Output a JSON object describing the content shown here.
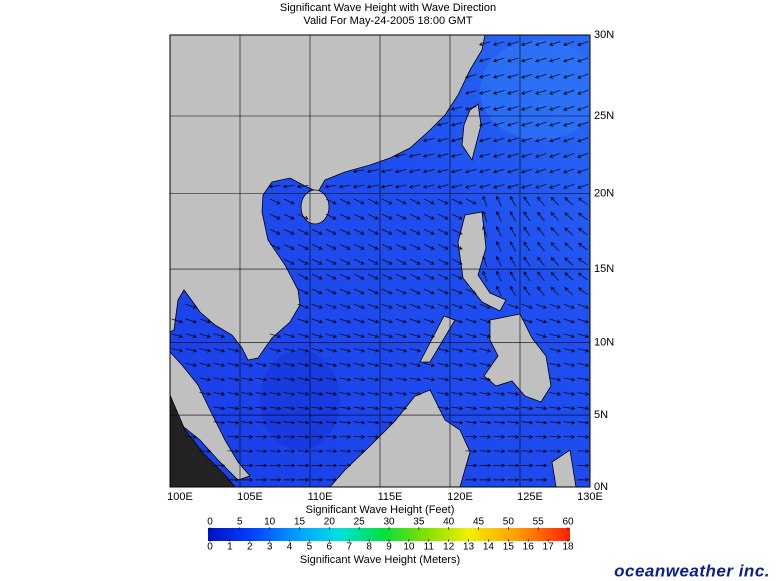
{
  "title": "Significant Wave Height with Wave Direction",
  "subtitle": "Valid For May-24-2005 18:00 GMT",
  "map": {
    "lon_labels": [
      "100E",
      "105E",
      "110E",
      "115E",
      "120E",
      "125E",
      "130E"
    ],
    "lat_labels": [
      "30N",
      "25N",
      "20N",
      "15N",
      "10N",
      "5N",
      "0N"
    ]
  },
  "legend": {
    "feet_label": "Significant Wave Height (Feet)",
    "feet_ticks": [
      0,
      5,
      10,
      15,
      20,
      25,
      30,
      35,
      40,
      45,
      50,
      55,
      60
    ],
    "meters_label": "Significant Wave Height (Meters)",
    "meters_ticks": [
      0,
      1,
      2,
      3,
      4,
      5,
      6,
      7,
      8,
      9,
      10,
      11,
      12,
      13,
      14,
      15,
      16,
      17,
      18
    ]
  },
  "logo": "oceanweather inc."
}
